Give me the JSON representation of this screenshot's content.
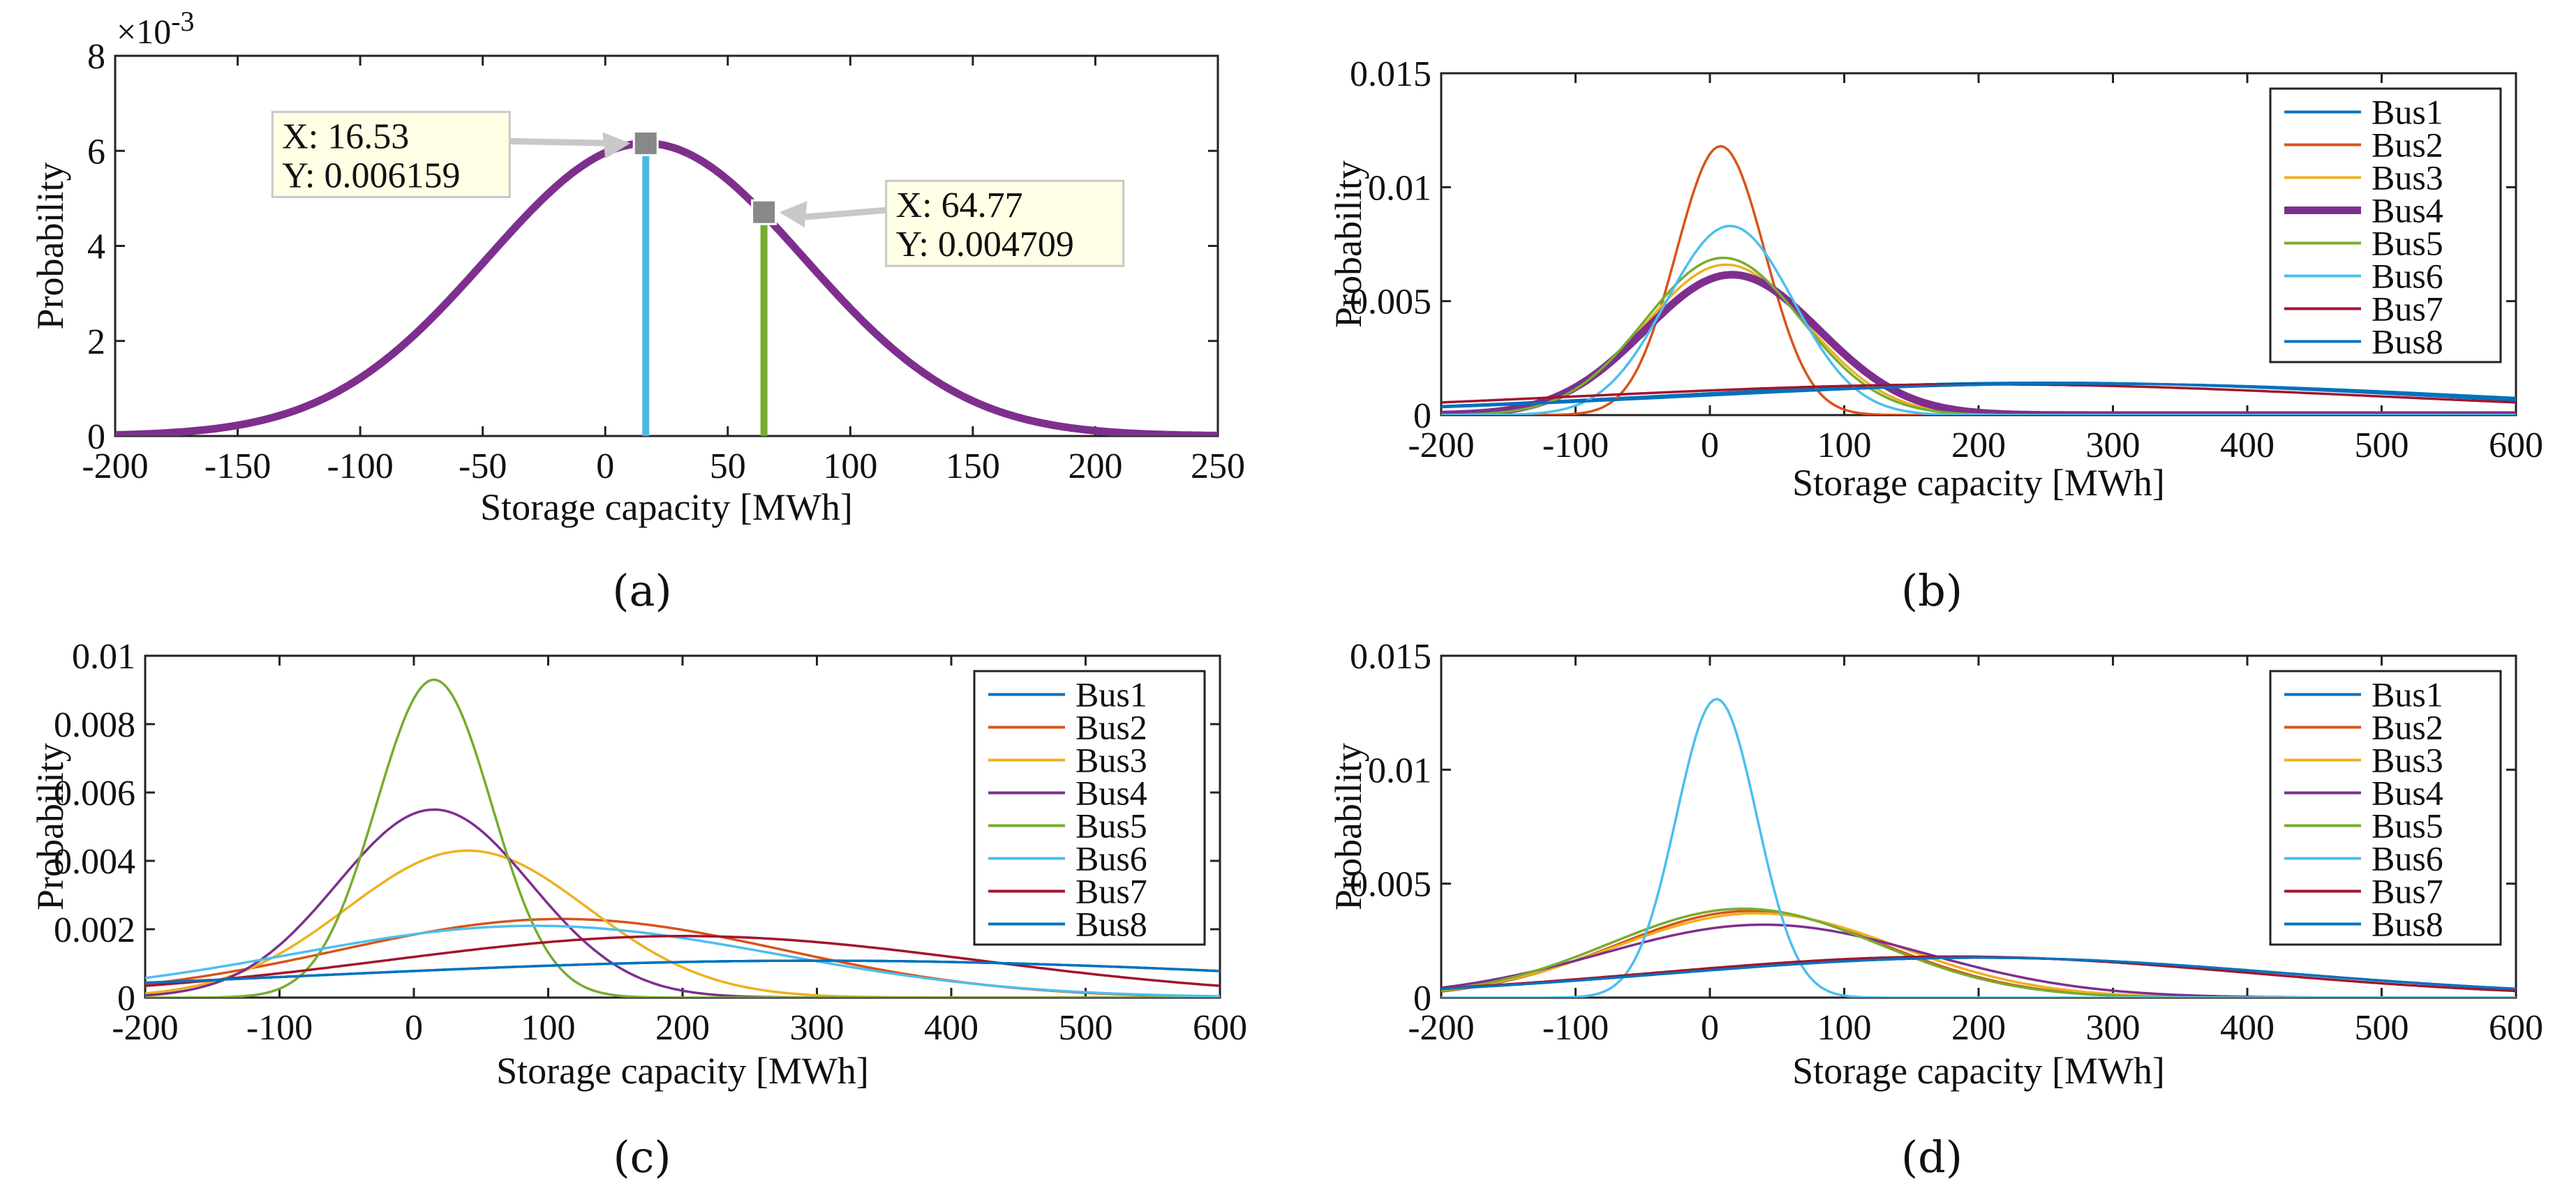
{
  "colors": {
    "bus1": "#0072bd",
    "bus2": "#d95319",
    "bus3": "#edb120",
    "bus4": "#7e2f8e",
    "bus5": "#77ac30",
    "bus6": "#4dbeee",
    "bus7": "#a2142f",
    "bus8": "#0072bd",
    "tip_line_a": "#4db8e8",
    "tip_line_b": "#77ac30",
    "datatip_bg": "#ffffe5",
    "datatip_marker": "#888888"
  },
  "chart_data": [
    {
      "id": "a",
      "type": "line",
      "panel_label": "(a)",
      "xlabel": "Storage capacity [MWh]",
      "ylabel": "Probability",
      "exponent_label": "×10",
      "exponent_power": "-3",
      "xlim": [
        -200,
        250
      ],
      "ylim": [
        0,
        8
      ],
      "xticks": [
        -200,
        -150,
        -100,
        -50,
        0,
        50,
        100,
        150,
        200,
        250
      ],
      "yticks": [
        0,
        2,
        4,
        6,
        8
      ],
      "xtick_labels": [
        "-200",
        "-150",
        "-100",
        "-50",
        "0",
        "50",
        "100",
        "150",
        "200",
        "250"
      ],
      "ytick_labels": [
        "0",
        "2",
        "4",
        "6",
        "8"
      ],
      "series": [
        {
          "name": "Bus4",
          "color_key": "bus4",
          "mean": 16.53,
          "sd": 64.77,
          "peak": 6.159,
          "width": "thick"
        }
      ],
      "datatips": [
        {
          "x": 16.53,
          "y": 6.159,
          "x_text": "X: 16.53",
          "y_text": "Y: 0.006159",
          "color_key": "tip_line_a",
          "side": "left"
        },
        {
          "x": 64.77,
          "y": 4.709,
          "x_text": "X: 64.77",
          "y_text": "Y: 0.004709",
          "color_key": "tip_line_b",
          "side": "right"
        }
      ]
    },
    {
      "id": "b",
      "type": "line",
      "panel_label": "(b)",
      "xlabel": "Storage capacity [MWh]",
      "ylabel": "Probability",
      "xlim": [
        -200,
        600
      ],
      "ylim": [
        0,
        0.015
      ],
      "xticks": [
        -200,
        -100,
        0,
        100,
        200,
        300,
        400,
        500,
        600
      ],
      "yticks": [
        0,
        0.005,
        0.01,
        0.015
      ],
      "xtick_labels": [
        "-200",
        "-100",
        "0",
        "100",
        "200",
        "300",
        "400",
        "500",
        "600"
      ],
      "ytick_labels": [
        "0",
        "0.005",
        "0.01",
        "0.015"
      ],
      "legend_position": "top-right",
      "series": [
        {
          "name": "Bus1",
          "color_key": "bus1",
          "mean": 250,
          "sd": 280,
          "peak": 0.00142
        },
        {
          "name": "Bus2",
          "color_key": "bus2",
          "mean": 8,
          "sd": 33,
          "peak": 0.0118
        },
        {
          "name": "Bus3",
          "color_key": "bus3",
          "mean": 12,
          "sd": 60,
          "peak": 0.0066
        },
        {
          "name": "Bus4",
          "color_key": "bus4",
          "mean": 16.53,
          "sd": 64.77,
          "peak": 0.006159,
          "width": "thick"
        },
        {
          "name": "Bus5",
          "color_key": "bus5",
          "mean": 10,
          "sd": 58,
          "peak": 0.0069
        },
        {
          "name": "Bus6",
          "color_key": "bus6",
          "mean": 15,
          "sd": 47,
          "peak": 0.0083
        },
        {
          "name": "Bus7",
          "color_key": "bus7",
          "mean": 200,
          "sd": 300,
          "peak": 0.00135
        },
        {
          "name": "Bus8",
          "color_key": "bus8",
          "mean": 280,
          "sd": 290,
          "peak": 0.00138
        }
      ]
    },
    {
      "id": "c",
      "type": "line",
      "panel_label": "(c)",
      "xlabel": "Storage capacity [MWh]",
      "ylabel": "Probability",
      "xlim": [
        -200,
        600
      ],
      "ylim": [
        0,
        0.01
      ],
      "xticks": [
        -200,
        -100,
        0,
        100,
        200,
        300,
        400,
        500,
        600
      ],
      "yticks": [
        0,
        0.002,
        0.004,
        0.006,
        0.008,
        0.01
      ],
      "xtick_labels": [
        "-200",
        "-100",
        "0",
        "100",
        "200",
        "300",
        "400",
        "500",
        "600"
      ],
      "ytick_labels": [
        "0",
        "0.002",
        "0.004",
        "0.006",
        "0.008",
        "0.01"
      ],
      "legend_position": "top-right",
      "series": [
        {
          "name": "Bus1",
          "color_key": "bus1",
          "mean": 300,
          "sd": 370,
          "peak": 0.00108
        },
        {
          "name": "Bus2",
          "color_key": "bus2",
          "mean": 110,
          "sd": 165,
          "peak": 0.0023
        },
        {
          "name": "Bus3",
          "color_key": "bus3",
          "mean": 40,
          "sd": 90,
          "peak": 0.0043
        },
        {
          "name": "Bus4",
          "color_key": "bus4",
          "mean": 15,
          "sd": 72,
          "peak": 0.0055
        },
        {
          "name": "Bus5",
          "color_key": "bus5",
          "mean": 15,
          "sd": 43,
          "peak": 0.0093
        },
        {
          "name": "Bus6",
          "color_key": "bus6",
          "mean": 90,
          "sd": 180,
          "peak": 0.0021
        },
        {
          "name": "Bus7",
          "color_key": "bus7",
          "mean": 200,
          "sd": 220,
          "peak": 0.0018
        },
        {
          "name": "Bus8",
          "color_key": "bus8",
          "mean": 300,
          "sd": 370,
          "peak": 0.00108
        }
      ]
    },
    {
      "id": "d",
      "type": "line",
      "panel_label": "(d)",
      "xlabel": "Storage capacity [MWh]",
      "ylabel": "Probability",
      "xlim": [
        -200,
        600
      ],
      "ylim": [
        0,
        0.015
      ],
      "xticks": [
        -200,
        -100,
        0,
        100,
        200,
        300,
        400,
        500,
        600
      ],
      "yticks": [
        0,
        0.005,
        0.01,
        0.015
      ],
      "xtick_labels": [
        "-200",
        "-100",
        "0",
        "100",
        "200",
        "300",
        "400",
        "500",
        "600"
      ],
      "ytick_labels": [
        "0",
        "0.005",
        "0.01",
        "0.015"
      ],
      "legend_position": "top-right",
      "series": [
        {
          "name": "Bus1",
          "color_key": "bus1",
          "mean": 200,
          "sd": 230,
          "peak": 0.00175
        },
        {
          "name": "Bus2",
          "color_key": "bus2",
          "mean": 30,
          "sd": 100,
          "peak": 0.0038
        },
        {
          "name": "Bus3",
          "color_key": "bus3",
          "mean": 35,
          "sd": 105,
          "peak": 0.0037
        },
        {
          "name": "Bus4",
          "color_key": "bus4",
          "mean": 40,
          "sd": 120,
          "peak": 0.0032
        },
        {
          "name": "Bus5",
          "color_key": "bus5",
          "mean": 25,
          "sd": 100,
          "peak": 0.0039
        },
        {
          "name": "Bus6",
          "color_key": "bus6",
          "mean": 5,
          "sd": 30,
          "peak": 0.0131
        },
        {
          "name": "Bus7",
          "color_key": "bus7",
          "mean": 180,
          "sd": 220,
          "peak": 0.0018
        },
        {
          "name": "Bus8",
          "color_key": "bus8",
          "mean": 200,
          "sd": 230,
          "peak": 0.00175
        }
      ]
    }
  ]
}
